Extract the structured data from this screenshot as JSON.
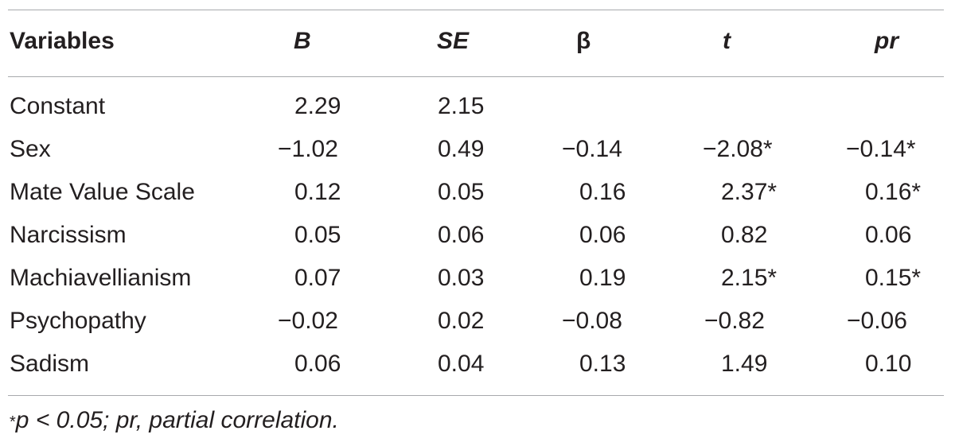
{
  "table": {
    "headers": {
      "variables": "Variables",
      "B": "B",
      "SE": "SE",
      "beta": "β",
      "t": "t",
      "pr": "pr"
    },
    "rows": [
      {
        "label": "Constant",
        "B": "2.29",
        "SE": "2.15",
        "beta": "",
        "t": "",
        "pr": ""
      },
      {
        "label": "Sex",
        "B": "−1.02",
        "SE": "0.49",
        "beta": "−0.14",
        "t": "−2.08*",
        "pr": "−0.14*"
      },
      {
        "label": "Mate Value Scale",
        "B": "0.12",
        "SE": "0.05",
        "beta": "0.16",
        "t": "2.37*",
        "pr": "0.16*"
      },
      {
        "label": "Narcissism",
        "B": "0.05",
        "SE": "0.06",
        "beta": "0.06",
        "t": "0.82",
        "pr": "0.06"
      },
      {
        "label": "Machiavellianism",
        "B": "0.07",
        "SE": "0.03",
        "beta": "0.19",
        "t": "2.15*",
        "pr": "0.15*"
      },
      {
        "label": "Psychopathy",
        "B": "−0.02",
        "SE": "0.02",
        "beta": "−0.08",
        "t": "−0.82",
        "pr": "−0.06"
      },
      {
        "label": "Sadism",
        "B": "0.06",
        "SE": "0.04",
        "beta": "0.13",
        "t": "1.49",
        "pr": "0.10"
      }
    ],
    "footnote": {
      "marker": "*",
      "text": "p < 0.05; pr, partial correlation."
    }
  }
}
